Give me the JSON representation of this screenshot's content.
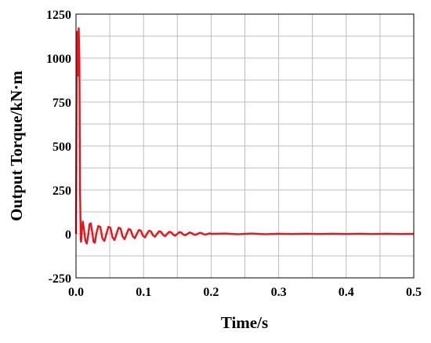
{
  "chart_data": {
    "type": "line",
    "title": "",
    "xlabel": "Time/s",
    "ylabel": "Output Torque/kN·m",
    "xlim": [
      0,
      0.5
    ],
    "ylim": [
      -250,
      1250
    ],
    "x_ticks": [
      0.0,
      0.1,
      0.2,
      0.3,
      0.4,
      0.5
    ],
    "x_tick_labels": [
      "0.0",
      "0.1",
      "0.2",
      "0.3",
      "0.4",
      "0.5"
    ],
    "y_ticks": [
      -250,
      0,
      250,
      500,
      750,
      1000,
      1250
    ],
    "y_tick_labels": [
      "-250",
      "0",
      "250",
      "500",
      "750",
      "1000",
      "1250"
    ],
    "x_minor_step": 0.05,
    "y_minor_step": 125,
    "grid": true,
    "legend": "none",
    "series": [
      {
        "color": "#e8141b",
        "x": [
          0.0,
          0.001,
          0.002,
          0.003,
          0.004,
          0.005,
          0.0055,
          0.006,
          0.007,
          0.0075,
          0.008,
          0.009,
          0.01,
          0.012,
          0.014,
          0.016,
          0.018,
          0.02,
          0.022,
          0.024,
          0.026,
          0.028,
          0.03,
          0.033,
          0.036,
          0.039,
          0.042,
          0.045,
          0.048,
          0.051,
          0.054,
          0.057,
          0.06,
          0.063,
          0.066,
          0.069,
          0.072,
          0.075,
          0.078,
          0.081,
          0.084,
          0.087,
          0.09,
          0.093,
          0.096,
          0.099,
          0.102,
          0.105,
          0.108,
          0.111,
          0.114,
          0.117,
          0.12,
          0.123,
          0.126,
          0.129,
          0.132,
          0.135,
          0.138,
          0.141,
          0.144,
          0.147,
          0.15,
          0.153,
          0.156,
          0.159,
          0.162,
          0.165,
          0.168,
          0.171,
          0.174,
          0.177,
          0.18,
          0.183,
          0.186,
          0.189,
          0.192,
          0.195,
          0.198,
          0.2,
          0.22,
          0.24,
          0.26,
          0.28,
          0.3,
          0.32,
          0.34,
          0.36,
          0.38,
          0.4,
          0.42,
          0.44,
          0.46,
          0.48,
          0.5
        ],
        "y": [
          0,
          1000,
          1150,
          900,
          1170,
          1000,
          600,
          250,
          -30,
          -45,
          -20,
          40,
          70,
          20,
          -40,
          -55,
          -10,
          55,
          60,
          10,
          -45,
          -50,
          0,
          45,
          40,
          -25,
          -40,
          0,
          40,
          35,
          -20,
          -35,
          0,
          35,
          30,
          -15,
          -30,
          0,
          28,
          22,
          -12,
          -25,
          0,
          22,
          18,
          -10,
          -20,
          0,
          18,
          14,
          -8,
          -16,
          0,
          15,
          11,
          -6,
          -13,
          0,
          12,
          9,
          -5,
          -10,
          0,
          10,
          7,
          -4,
          -8,
          0,
          8,
          5,
          -3,
          -6,
          0,
          6,
          4,
          -2,
          -4,
          0,
          3,
          0,
          2,
          -2,
          2,
          -2,
          1,
          -1,
          1,
          -1,
          1,
          -1,
          1,
          -1,
          1,
          -1,
          0
        ]
      }
    ]
  }
}
